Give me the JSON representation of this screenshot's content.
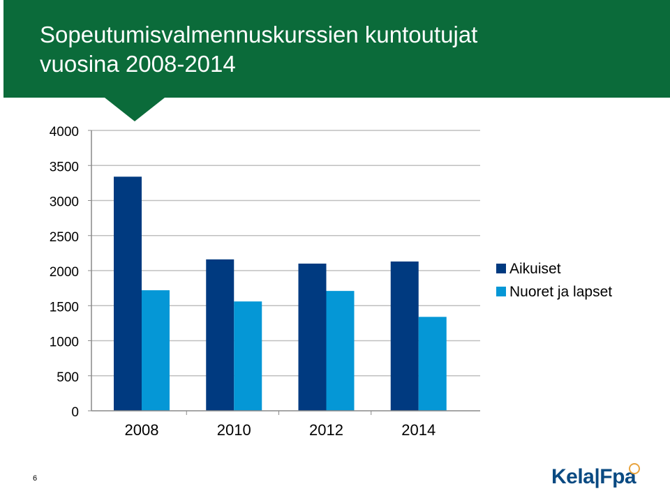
{
  "header": {
    "title_line1": "Sopeutumisvalmennuskurssien kuntoutujat",
    "title_line2": "vuosina 2008-2014"
  },
  "page_number": "6",
  "logo": {
    "text": "Kela|Fpa"
  },
  "colors": {
    "header_green": "#0b6b3a",
    "series_dark_blue": "#003a80",
    "series_light_blue": "#0597d6",
    "gridline": "#bfbfbf",
    "logo_blue": "#0a4a82",
    "logo_accent": "#e8a33d"
  },
  "chart_data": {
    "type": "bar",
    "categories": [
      "2008",
      "2010",
      "2012",
      "2014"
    ],
    "series": [
      {
        "name": "Aikuiset",
        "values": [
          3340,
          2160,
          2100,
          2130
        ]
      },
      {
        "name": "Nuoret ja lapset",
        "values": [
          1720,
          1560,
          1710,
          1340
        ]
      }
    ],
    "y_ticks": [
      0,
      500,
      1000,
      1500,
      2000,
      2500,
      3000,
      3500,
      4000
    ],
    "ylim": [
      0,
      4000
    ],
    "grid": true,
    "legend_position": "right"
  }
}
